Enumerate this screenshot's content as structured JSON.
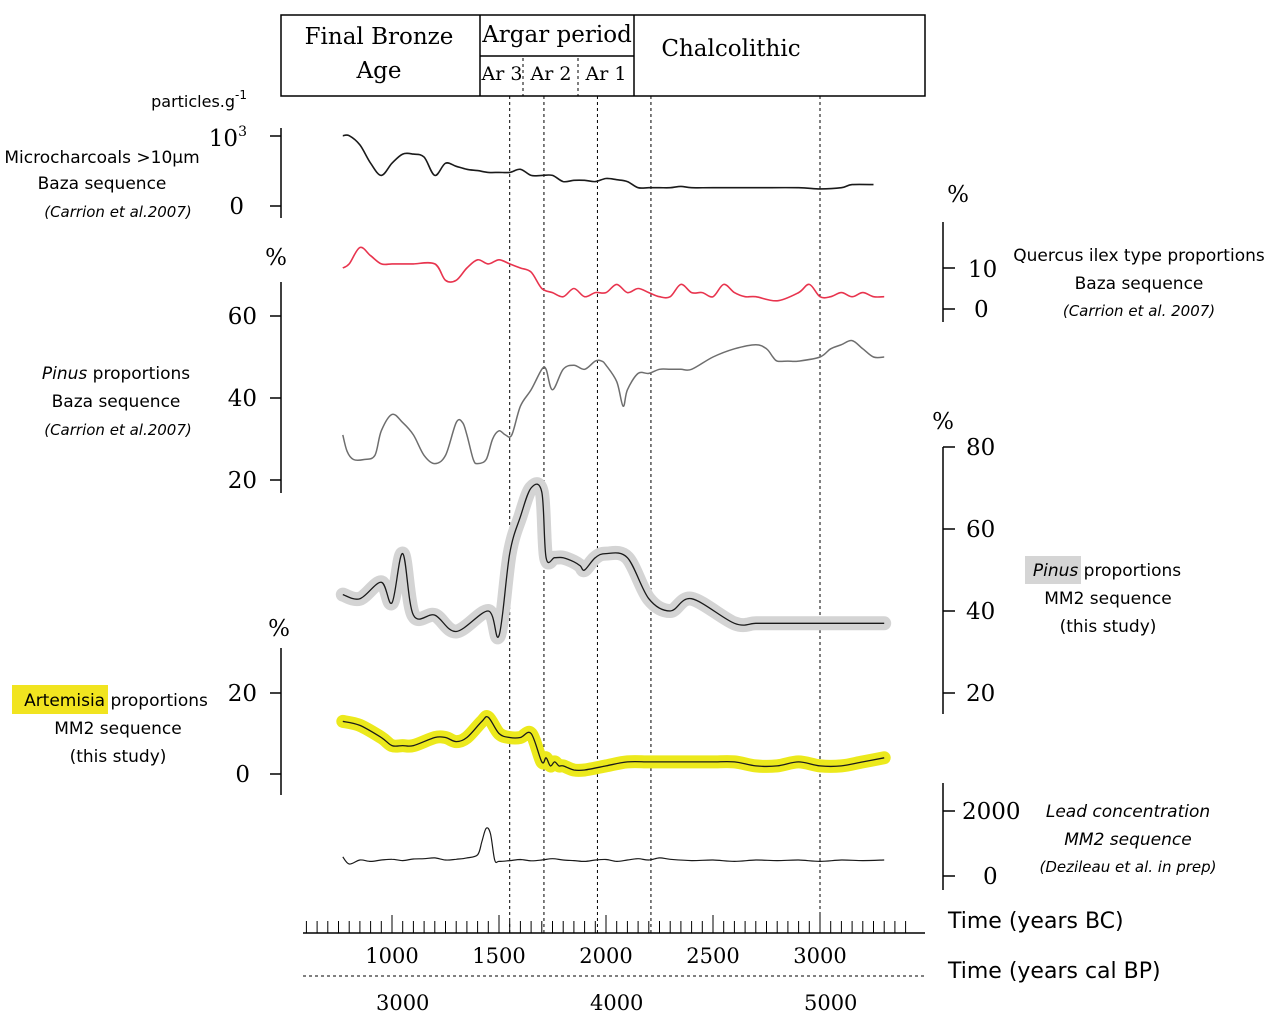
{
  "periods": {
    "final_bronze_line1": "Final Bronze",
    "final_bronze_line2": "Age",
    "argar": "Argar period",
    "ar3": "Ar 3",
    "ar2": "Ar 2",
    "ar1": "Ar 1",
    "chalcolithic": "Chalcolithic"
  },
  "labels": {
    "micro": {
      "line1": "Microcharcoals >10µm",
      "line2": "Baza sequence",
      "line3": "(Carrion et al.2007)",
      "unit_base": "particles.g",
      "unit_exp": "-1",
      "tick_top": "10",
      "tick_top_exp": "3",
      "tick_zero": "0"
    },
    "quercus": {
      "line1": "Quercus ilex type proportions",
      "line2": "Baza sequence",
      "line3": "(Carrion et al. 2007)",
      "unit": "%",
      "ticks": [
        "10",
        "0"
      ]
    },
    "pinus_baza": {
      "word": "Pinus",
      "rest": " proportions",
      "line2": "Baza sequence",
      "line3": "(Carrion et al.2007)",
      "unit": "%",
      "ticks": [
        "60",
        "40",
        "20"
      ]
    },
    "pinus_mm2": {
      "word": "Pinus",
      "rest": " proportions",
      "line2": "MM2 sequence",
      "line3": "(this study)",
      "unit": "%",
      "ticks": [
        "80",
        "60",
        "40",
        "20"
      ]
    },
    "artemisia": {
      "word": "Artemisia",
      "rest": " proportions",
      "line2": "MM2 sequence",
      "line3": "(this study)",
      "unit": "%",
      "ticks": [
        "20",
        "0"
      ]
    },
    "lead": {
      "line1": "Lead concentration",
      "line2": "MM2 sequence",
      "line3": "(Dezileau et al. in prep)",
      "ticks": [
        "2000",
        "0"
      ]
    }
  },
  "axes": {
    "bc_label": "Time (years BC)",
    "bp_label": "Time (years cal BP)",
    "bc_ticks": [
      "1000",
      "1500",
      "2000",
      "2500",
      "3000"
    ],
    "bp_ticks": [
      "3000",
      "4000",
      "5000"
    ]
  },
  "colors": {
    "quercus": "#e8344e",
    "pinus_baza": "#6e6e6e",
    "pinus_mm2_band": "#d4d4d4",
    "artemisia_band": "#ece91c",
    "highlight_yellow": "#f1e41f",
    "highlight_gray": "#d5d5d5"
  },
  "chart_data": {
    "type": "line",
    "x_unit": "years BC",
    "xlim": [
      750,
      3400
    ],
    "period_boundaries_bc": [
      1550,
      1710,
      1960,
      2210,
      3000
    ],
    "series": [
      {
        "name": "Microcharcoals >10µm Baza sequence",
        "unit": "particles.g-1",
        "x": [
          770,
          800,
          850,
          900,
          950,
          1000,
          1050,
          1100,
          1150,
          1200,
          1250,
          1300,
          1350,
          1400,
          1450,
          1500,
          1550,
          1600,
          1650,
          1700,
          1750,
          1800,
          1850,
          1900,
          1950,
          2000,
          2050,
          2100,
          2150,
          2200,
          2250,
          2300,
          2350,
          2400,
          2500,
          2700,
          2900,
          3000,
          3100,
          3150,
          3250
        ],
        "y": [
          1150,
          1150,
          1000,
          700,
          500,
          700,
          850,
          850,
          800,
          500,
          700,
          650,
          600,
          580,
          550,
          550,
          550,
          600,
          500,
          500,
          500,
          400,
          420,
          420,
          400,
          450,
          430,
          400,
          300,
          300,
          300,
          300,
          320,
          300,
          300,
          300,
          300,
          280,
          300,
          350,
          350
        ]
      },
      {
        "name": "Quercus ilex type proportions Baza sequence",
        "unit": "%",
        "x": [
          770,
          800,
          850,
          900,
          950,
          1000,
          1050,
          1100,
          1200,
          1250,
          1300,
          1350,
          1400,
          1450,
          1500,
          1550,
          1600,
          1650,
          1700,
          1750,
          1800,
          1850,
          1900,
          1950,
          2000,
          2050,
          2100,
          2150,
          2200,
          2250,
          2300,
          2350,
          2400,
          2450,
          2500,
          2550,
          2600,
          2650,
          2700,
          2800,
          2900,
          2950,
          3000,
          3050,
          3100,
          3150,
          3200,
          3250,
          3300
        ],
        "y": [
          10,
          11,
          15,
          13,
          11,
          11,
          11,
          11,
          11,
          7,
          7,
          10,
          12,
          11,
          12,
          11,
          10,
          9,
          5,
          4,
          3,
          5,
          3,
          4,
          4,
          6,
          4,
          5,
          4,
          3,
          3,
          6,
          4,
          4,
          3,
          6,
          4,
          3,
          3,
          2,
          4,
          6,
          3,
          3,
          4,
          3,
          4,
          3,
          3
        ]
      },
      {
        "name": "Pinus proportions Baza sequence",
        "unit": "%",
        "x": [
          770,
          790,
          820,
          870,
          920,
          950,
          1000,
          1050,
          1100,
          1150,
          1200,
          1250,
          1300,
          1330,
          1350,
          1380,
          1400,
          1440,
          1470,
          1500,
          1530,
          1560,
          1600,
          1650,
          1700,
          1720,
          1750,
          1800,
          1850,
          1900,
          1950,
          1980,
          2000,
          2050,
          2080,
          2100,
          2150,
          2200,
          2250,
          2300,
          2350,
          2400,
          2500,
          2600,
          2700,
          2750,
          2780,
          2800,
          2850,
          2900,
          3000,
          3050,
          3100,
          3150,
          3200,
          3250,
          3300
        ],
        "y": [
          31,
          27,
          25,
          25,
          26,
          32,
          36,
          34,
          31,
          26,
          24,
          26,
          34,
          34,
          31,
          25,
          24,
          25,
          30,
          32,
          31,
          31,
          38,
          42,
          47,
          47,
          42,
          47,
          48,
          47,
          49,
          49,
          48,
          44,
          38,
          42,
          46,
          46,
          47,
          47,
          47,
          47,
          50,
          52,
          53,
          52,
          50,
          49,
          49,
          49,
          50,
          52,
          53,
          54,
          52,
          50,
          50
        ]
      },
      {
        "name": "Pinus proportions MM2 sequence",
        "unit": "%",
        "x": [
          770,
          850,
          950,
          1000,
          1050,
          1100,
          1200,
          1300,
          1450,
          1500,
          1550,
          1600,
          1650,
          1700,
          1720,
          1760,
          1800,
          1850,
          1880,
          1900,
          1950,
          2000,
          2100,
          2200,
          2300,
          2400,
          2600,
          2700,
          2800,
          2900,
          3000,
          3100,
          3300
        ],
        "y": [
          44,
          43,
          47,
          42,
          54,
          39,
          39,
          35,
          40,
          34,
          54,
          63,
          70,
          69,
          53,
          53,
          53,
          52,
          51,
          50,
          53,
          54,
          53,
          43,
          40,
          43,
          37,
          37,
          37,
          37,
          37,
          37,
          37
        ]
      },
      {
        "name": "Artemisia proportions MM2 sequence",
        "unit": "%",
        "x": [
          770,
          850,
          950,
          1000,
          1050,
          1100,
          1200,
          1250,
          1300,
          1350,
          1420,
          1450,
          1500,
          1550,
          1600,
          1650,
          1700,
          1720,
          1740,
          1760,
          1780,
          1800,
          1850,
          1900,
          2000,
          2100,
          2200,
          2300,
          2400,
          2500,
          2600,
          2700,
          2800,
          2900,
          3000,
          3100,
          3200,
          3300
        ],
        "y": [
          13,
          12,
          9,
          7,
          7,
          7,
          9,
          9,
          8,
          9,
          13,
          14,
          10,
          9,
          9,
          10,
          3,
          4,
          2,
          3,
          2,
          2,
          1,
          1,
          2,
          3,
          3,
          3,
          3,
          3,
          3,
          2,
          2,
          3,
          2,
          2,
          3,
          4
        ]
      },
      {
        "name": "Lead concentration MM2 sequence",
        "unit": "",
        "x": [
          770,
          800,
          850,
          900,
          950,
          1000,
          1050,
          1100,
          1150,
          1200,
          1250,
          1300,
          1350,
          1400,
          1420,
          1440,
          1460,
          1480,
          1500,
          1550,
          1600,
          1650,
          1700,
          1750,
          1800,
          1850,
          1900,
          1950,
          2000,
          2050,
          2100,
          2150,
          2200,
          2250,
          2300,
          2400,
          2500,
          2600,
          2700,
          2800,
          2900,
          3000,
          3100,
          3200,
          3300
        ],
        "y": [
          420,
          150,
          300,
          250,
          300,
          330,
          280,
          340,
          350,
          380,
          300,
          330,
          380,
          500,
          1000,
          1500,
          1300,
          300,
          250,
          280,
          320,
          270,
          300,
          350,
          300,
          280,
          250,
          300,
          320,
          250,
          300,
          350,
          300,
          380,
          330,
          280,
          300,
          250,
          300,
          280,
          300,
          250,
          300,
          280,
          300
        ]
      }
    ]
  }
}
